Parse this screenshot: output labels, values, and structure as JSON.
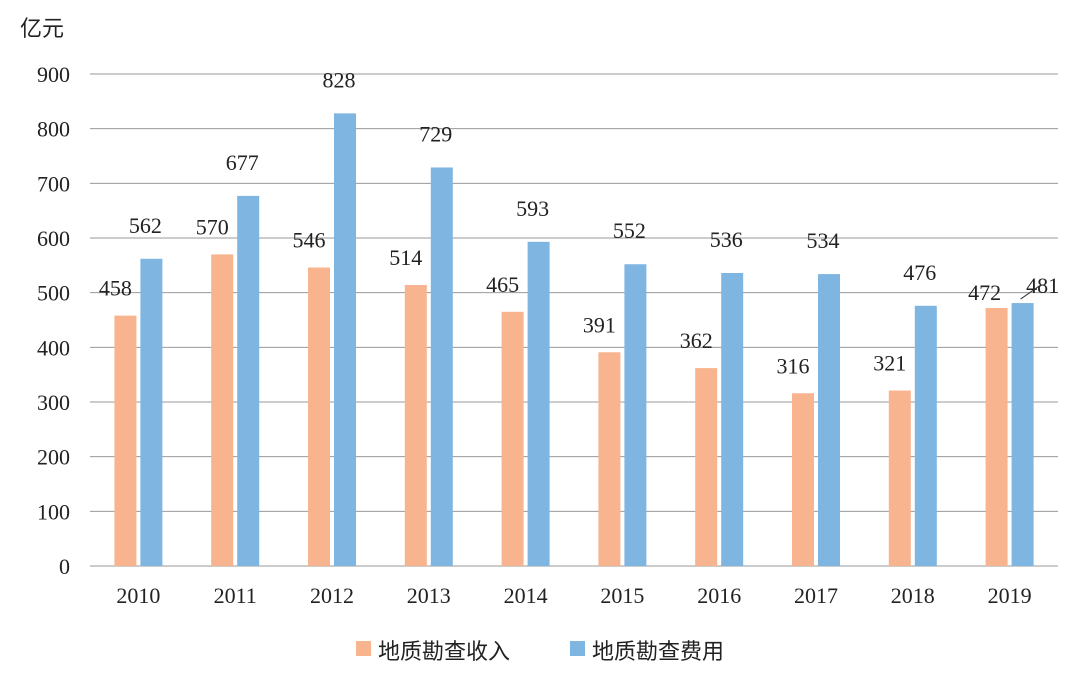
{
  "chart_data": {
    "type": "bar",
    "title": "",
    "xlabel": "",
    "ylabel": "亿元",
    "ylim": [
      0,
      900
    ],
    "yticks": [
      "0",
      "100",
      "200",
      "300",
      "400",
      "500",
      "600",
      "700",
      "800",
      "900"
    ],
    "ytick_values": [
      0,
      100,
      200,
      300,
      400,
      500,
      600,
      700,
      800,
      900
    ],
    "grid": true,
    "legend_position": "bottom-center",
    "categories": [
      "2010",
      "2011",
      "2012",
      "2013",
      "2014",
      "2015",
      "2016",
      "2017",
      "2018",
      "2019"
    ],
    "series": [
      {
        "name": "地质勘查收入",
        "color": "#f8b48e",
        "values": [
          458,
          570,
          546,
          514,
          465,
          391,
          362,
          316,
          321,
          472
        ]
      },
      {
        "name": "地质勘查费用",
        "color": "#7fb5e1",
        "values": [
          562,
          677,
          828,
          729,
          593,
          552,
          536,
          534,
          476,
          481
        ]
      }
    ],
    "colors": {
      "grid": "#9a9a9a",
      "axis": "#9a9a9a"
    }
  }
}
